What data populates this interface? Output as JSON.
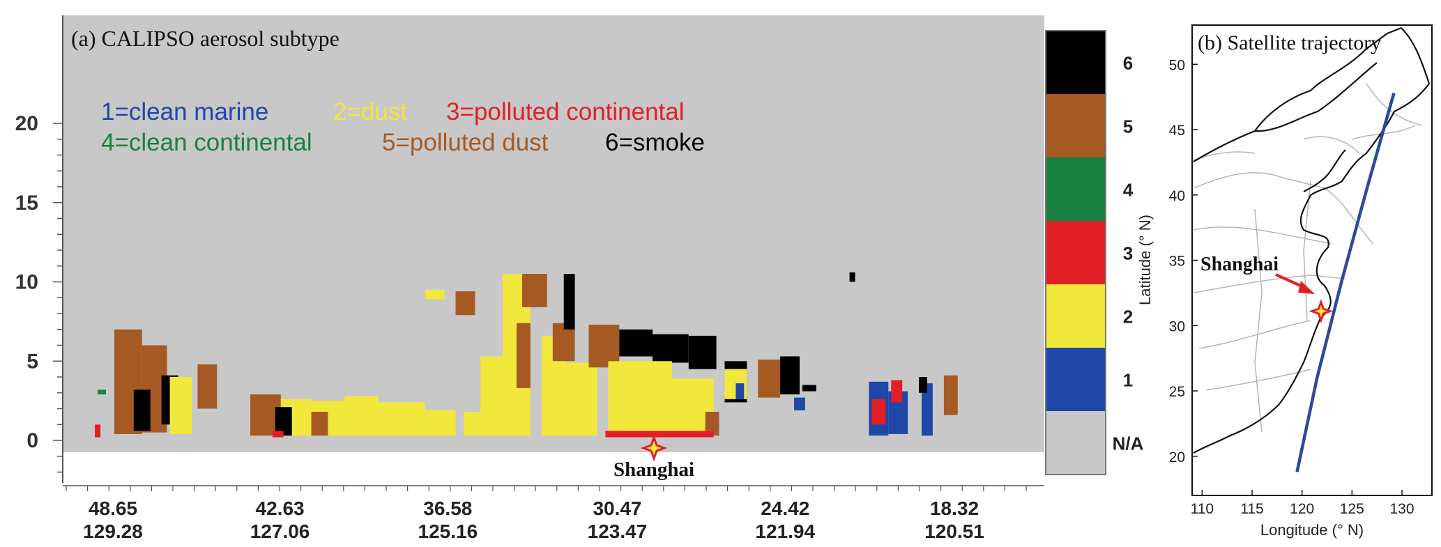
{
  "chart_data": [
    {
      "type": "heatmap",
      "panel_label": "(a) CALIPSO aerosol subtype",
      "y_ticks": [
        "0",
        "5",
        "10",
        "15",
        "20"
      ],
      "ylim": [
        -2,
        20
      ],
      "x_ticks": [
        {
          "lat": "48.65",
          "lon": "129.28"
        },
        {
          "lat": "42.63",
          "lon": "127.06"
        },
        {
          "lat": "36.58",
          "lon": "125.16"
        },
        {
          "lat": "30.47",
          "lon": "123.47"
        },
        {
          "lat": "24.42",
          "lon": "121.94"
        },
        {
          "lat": "18.32",
          "lon": "120.51"
        }
      ],
      "legend_rows": [
        [
          {
            "text": "1=clean marine",
            "color": "#1f47a8"
          },
          {
            "text": "2=dust",
            "color": "#f2e83c"
          },
          {
            "text": "3=polluted continental",
            "color": "#e21f26"
          }
        ],
        [
          {
            "text": "4=clean continental",
            "color": "#178041"
          },
          {
            "text": "5=polluted dust",
            "color": "#a55a24"
          },
          {
            "text": "6=smoke",
            "color": "#000000"
          }
        ]
      ],
      "colorbar": [
        {
          "label": "6",
          "color": "#000000"
        },
        {
          "label": "5",
          "color": "#a55a24"
        },
        {
          "label": "4",
          "color": "#178041"
        },
        {
          "label": "3",
          "color": "#e21f26"
        },
        {
          "label": "2",
          "color": "#f2e83c"
        },
        {
          "label": "1",
          "color": "#1f47a8"
        },
        {
          "label": "N/A",
          "color": "#c8c8c8"
        }
      ],
      "shanghai_label": "Shanghai",
      "aerosol_patches": [
        {
          "lat": [
            48.6,
            47.6
          ],
          "alt": [
            0.4,
            7.0
          ],
          "subtype": 5
        },
        {
          "lat": [
            47.6,
            46.7
          ],
          "alt": [
            0.5,
            6.0
          ],
          "subtype": 5
        },
        {
          "lat": [
            47.9,
            47.3
          ],
          "alt": [
            0.6,
            3.2
          ],
          "subtype": 6
        },
        {
          "lat": [
            46.9,
            46.3
          ],
          "alt": [
            1.0,
            4.1
          ],
          "subtype": 6
        },
        {
          "lat": [
            46.6,
            45.8
          ],
          "alt": [
            0.4,
            4.0
          ],
          "subtype": 2
        },
        {
          "lat": [
            45.6,
            44.9
          ],
          "alt": [
            2.0,
            4.8
          ],
          "subtype": 5
        },
        {
          "lat": [
            49.2,
            48.9
          ],
          "alt": [
            2.9,
            3.2
          ],
          "subtype": 4
        },
        {
          "lat": [
            49.3,
            49.1
          ],
          "alt": [
            0.2,
            1.0
          ],
          "subtype": 3
        },
        {
          "lat": [
            43.7,
            42.6
          ],
          "alt": [
            0.3,
            2.9
          ],
          "subtype": 5
        },
        {
          "lat": [
            42.6,
            41.5
          ],
          "alt": [
            0.3,
            2.6
          ],
          "subtype": 2
        },
        {
          "lat": [
            42.8,
            42.2
          ],
          "alt": [
            0.3,
            2.1
          ],
          "subtype": 6
        },
        {
          "lat": [
            42.9,
            42.5
          ],
          "alt": [
            0.2,
            0.6
          ],
          "subtype": 3
        },
        {
          "lat": [
            41.5,
            40.3
          ],
          "alt": [
            0.3,
            2.5
          ],
          "subtype": 2
        },
        {
          "lat": [
            41.5,
            40.9
          ],
          "alt": [
            0.3,
            1.8
          ],
          "subtype": 5
        },
        {
          "lat": [
            40.3,
            39.1
          ],
          "alt": [
            0.3,
            2.8
          ],
          "subtype": 2
        },
        {
          "lat": [
            39.1,
            37.4
          ],
          "alt": [
            0.3,
            2.4
          ],
          "subtype": 2
        },
        {
          "lat": [
            37.4,
            36.3
          ],
          "alt": [
            0.3,
            1.9
          ],
          "subtype": 2
        },
        {
          "lat": [
            36.0,
            35.2
          ],
          "alt": [
            0.3,
            1.8
          ],
          "subtype": 2
        },
        {
          "lat": [
            35.4,
            34.6
          ],
          "alt": [
            0.3,
            5.3
          ],
          "subtype": 2
        },
        {
          "lat": [
            34.6,
            33.6
          ],
          "alt": [
            0.3,
            10.5
          ],
          "subtype": 2
        },
        {
          "lat": [
            33.9,
            33.0
          ],
          "alt": [
            8.4,
            10.5
          ],
          "subtype": 5
        },
        {
          "lat": [
            33.2,
            32.3
          ],
          "alt": [
            0.3,
            6.6
          ],
          "subtype": 2
        },
        {
          "lat": [
            32.8,
            32.0
          ],
          "alt": [
            5.0,
            7.4
          ],
          "subtype": 5
        },
        {
          "lat": [
            32.8,
            31.2
          ],
          "alt": [
            0.3,
            4.9
          ],
          "subtype": 2
        },
        {
          "lat": [
            34.1,
            33.6
          ],
          "alt": [
            3.3,
            7.4
          ],
          "subtype": 5
        },
        {
          "lat": [
            32.4,
            32.0
          ],
          "alt": [
            7.0,
            10.5
          ],
          "subtype": 6
        },
        {
          "lat": [
            37.4,
            36.7
          ],
          "alt": [
            8.9,
            9.5
          ],
          "subtype": 2
        },
        {
          "lat": [
            36.3,
            35.6
          ],
          "alt": [
            7.9,
            9.4
          ],
          "subtype": 5
        },
        {
          "lat": [
            31.5,
            30.4
          ],
          "alt": [
            4.6,
            7.3
          ],
          "subtype": 5
        },
        {
          "lat": [
            30.4,
            29.2
          ],
          "alt": [
            5.3,
            7.0
          ],
          "subtype": 6
        },
        {
          "lat": [
            29.2,
            27.9
          ],
          "alt": [
            4.9,
            6.7
          ],
          "subtype": 6
        },
        {
          "lat": [
            27.9,
            26.9
          ],
          "alt": [
            4.5,
            6.6
          ],
          "subtype": 6
        },
        {
          "lat": [
            30.8,
            28.5
          ],
          "alt": [
            0.3,
            5.0
          ],
          "subtype": 2
        },
        {
          "lat": [
            28.5,
            27.0
          ],
          "alt": [
            0.3,
            3.9
          ],
          "subtype": 2
        },
        {
          "lat": [
            27.3,
            26.8
          ],
          "alt": [
            0.3,
            1.8
          ],
          "subtype": 5
        },
        {
          "lat": [
            26.6,
            25.8
          ],
          "alt": [
            2.4,
            5.0
          ],
          "subtype": 6
        },
        {
          "lat": [
            26.6,
            25.8
          ],
          "alt": [
            2.6,
            4.5
          ],
          "subtype": 2
        },
        {
          "lat": [
            25.4,
            24.6
          ],
          "alt": [
            2.7,
            5.1
          ],
          "subtype": 5
        },
        {
          "lat": [
            24.6,
            23.9
          ],
          "alt": [
            2.9,
            5.3
          ],
          "subtype": 6
        },
        {
          "lat": [
            30.9,
            27.0
          ],
          "alt": [
            0.2,
            0.6
          ],
          "subtype": 3
        },
        {
          "lat": [
            26.2,
            25.9
          ],
          "alt": [
            2.6,
            3.6
          ],
          "subtype": 1
        },
        {
          "lat": [
            24.1,
            23.7
          ],
          "alt": [
            1.9,
            2.7
          ],
          "subtype": 1
        },
        {
          "lat": [
            23.8,
            23.3
          ],
          "alt": [
            3.1,
            3.5
          ],
          "subtype": 6
        },
        {
          "lat": [
            21.4,
            20.7
          ],
          "alt": [
            0.3,
            3.7
          ],
          "subtype": 1
        },
        {
          "lat": [
            21.3,
            20.8
          ],
          "alt": [
            1.0,
            2.6
          ],
          "subtype": 3
        },
        {
          "lat": [
            20.7,
            20.0
          ],
          "alt": [
            0.4,
            3.1
          ],
          "subtype": 1
        },
        {
          "lat": [
            20.6,
            20.2
          ],
          "alt": [
            2.4,
            3.8
          ],
          "subtype": 3
        },
        {
          "lat": [
            19.5,
            19.1
          ],
          "alt": [
            0.3,
            3.6
          ],
          "subtype": 1
        },
        {
          "lat": [
            19.6,
            19.3
          ],
          "alt": [
            3.0,
            4.0
          ],
          "subtype": 6
        },
        {
          "lat": [
            18.7,
            18.2
          ],
          "alt": [
            1.6,
            4.1
          ],
          "subtype": 5
        },
        {
          "lat": [
            22.1,
            21.9
          ],
          "alt": [
            10.0,
            10.6
          ],
          "subtype": 6
        }
      ]
    },
    {
      "type": "map",
      "panel_label": "(b) Satellite trajectory",
      "xlabel": "Longitude (° N)",
      "ylabel": "Latitude (° N)",
      "x_ticks": [
        "110",
        "115",
        "120",
        "125",
        "130"
      ],
      "y_ticks": [
        "20",
        "25",
        "30",
        "35",
        "40",
        "45",
        "50"
      ],
      "xlim": [
        109,
        133
      ],
      "ylim": [
        17,
        53
      ],
      "track_color": "#2a4a9a",
      "track": [
        [
          119.5,
          18.8
        ],
        [
          121.5,
          26.0
        ],
        [
          124.0,
          33.5
        ],
        [
          126.5,
          40.5
        ],
        [
          129.2,
          47.8
        ]
      ],
      "shanghai": {
        "label": "Shanghai",
        "lon": 121.9,
        "lat": 31.1
      }
    }
  ]
}
